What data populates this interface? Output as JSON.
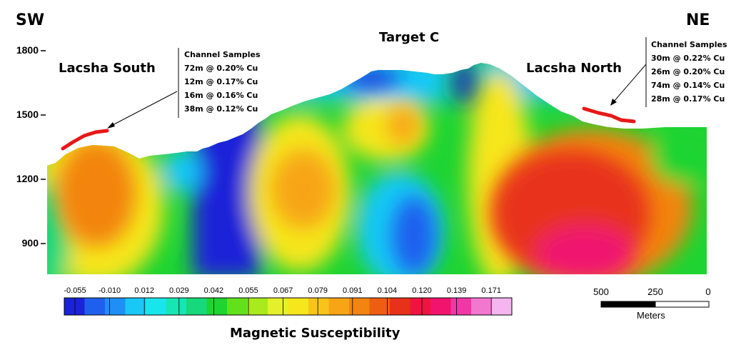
{
  "section": {
    "sw_label": "SW",
    "ne_label": "NE",
    "target_label": "Target C",
    "south_label": "Lacsha South",
    "north_label": "Lacsha North",
    "elevation_ticks": [
      "1800",
      "1500",
      "1200",
      "900"
    ]
  },
  "south_samples": {
    "title": "Channel Samples",
    "rows": [
      "72m @ 0.20% Cu",
      "12m @ 0.17% Cu",
      "16m @ 0.16% Cu",
      "38m @ 0.12% Cu"
    ]
  },
  "north_samples": {
    "title": "Channel Samples",
    "rows": [
      "30m @ 0.22% Cu",
      "26m @ 0.20% Cu",
      "74m @ 0.14% Cu",
      "28m @ 0.17% Cu"
    ]
  },
  "legend": {
    "title": "Magnetic Susceptibility",
    "ticks": [
      "-0.055",
      "-0.010",
      "0.012",
      "0.029",
      "0.042",
      "0.055",
      "0.067",
      "0.079",
      "0.091",
      "0.104",
      "0.120",
      "0.139",
      "0.171"
    ],
    "colors": [
      "#1a23d8",
      "#1f5fee",
      "#1e90f5",
      "#19c8f6",
      "#19e6ea",
      "#17e6b2",
      "#17d87a",
      "#1ed432",
      "#63e01c",
      "#a8ea1c",
      "#e3f02a",
      "#f6e61c",
      "#f8c41a",
      "#f7a514",
      "#f3840f",
      "#ee5e12",
      "#e8311a",
      "#ef1440",
      "#f0146f",
      "#ef38a5",
      "#f277cf",
      "#f5b5ee"
    ]
  },
  "scale": {
    "labels": [
      "500",
      "250",
      "0"
    ],
    "unit": "Meters"
  }
}
